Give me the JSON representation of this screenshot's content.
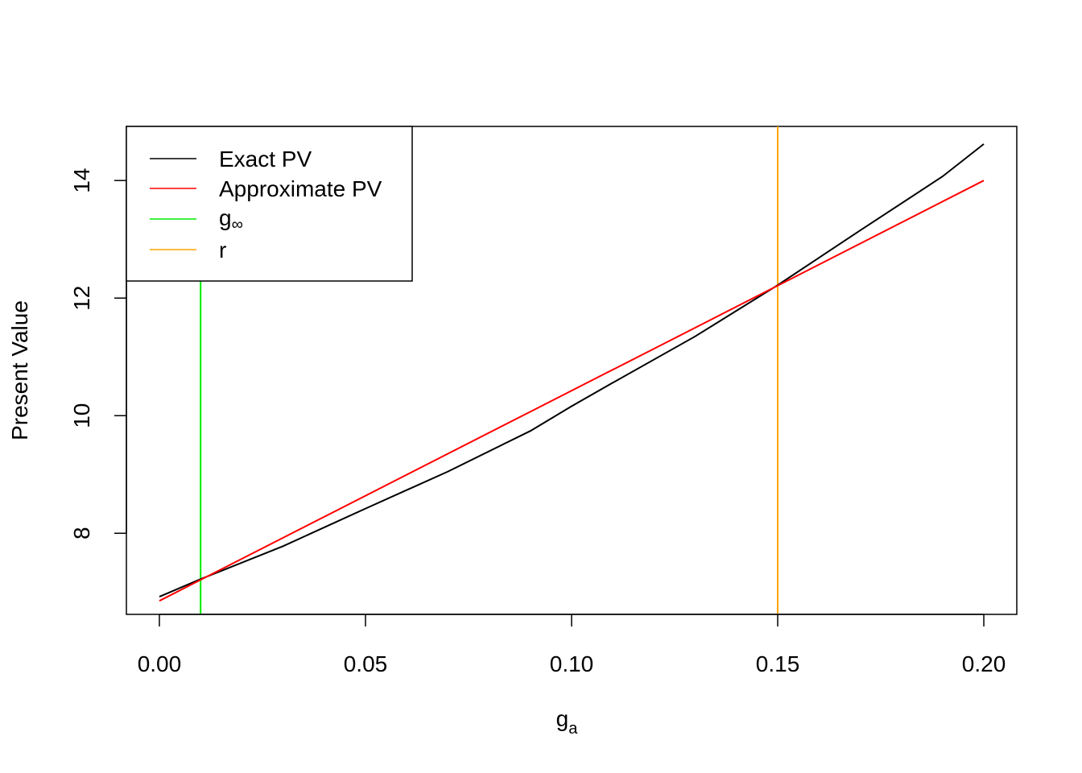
{
  "chart_data": {
    "type": "line",
    "xlabel": "g",
    "xlabel_subscript": "a",
    "ylabel": "Present Value",
    "xlim": [
      -0.008,
      0.208
    ],
    "ylim": [
      6.62,
      14.92
    ],
    "x_ticks": [
      0.0,
      0.05,
      0.1,
      0.15,
      0.2
    ],
    "x_tick_labels": [
      "0.00",
      "0.05",
      "0.10",
      "0.15",
      "0.20"
    ],
    "y_ticks": [
      8,
      10,
      12,
      14
    ],
    "y_tick_labels": [
      "8",
      "10",
      "12",
      "14"
    ],
    "grid": false,
    "legend_position": "top-left",
    "series": [
      {
        "name": "Exact PV",
        "color": "#000000",
        "x": [
          0.0,
          0.01,
          0.03,
          0.05,
          0.07,
          0.09,
          0.1,
          0.11,
          0.13,
          0.15,
          0.17,
          0.19,
          0.2
        ],
        "y": [
          6.92,
          7.22,
          7.78,
          8.42,
          9.05,
          9.74,
          10.16,
          10.56,
          11.35,
          12.22,
          13.15,
          14.07,
          14.62
        ]
      },
      {
        "name": "Approximate PV",
        "color": "#ff0000",
        "x": [
          0.0,
          0.2
        ],
        "y": [
          6.85,
          14.0
        ]
      }
    ],
    "vlines": [
      {
        "name": "g",
        "name_subscript": "∞",
        "x": 0.01,
        "color": "#00ee00"
      },
      {
        "name": "r",
        "x": 0.15,
        "color": "#ffa500"
      }
    ]
  }
}
